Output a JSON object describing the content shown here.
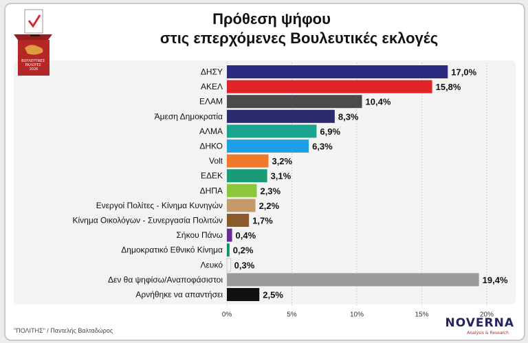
{
  "header": {
    "title_line1": "Πρόθεση ψήφου",
    "title_line2": "στις επερχόμενες Βουλευτικές εκλογές",
    "ballot_box_text": "ΒΟΥΛΕΥΤΙΚΕΣ ΕΚΛΟΓΕΣ 2026"
  },
  "footer": {
    "source": "\"ΠΟΛΙΤΗΣ\" / Παντελής Βαλταδώρος",
    "brand": "NOVERNA",
    "brand_sub": "Analysis & Research"
  },
  "chart_data": {
    "type": "bar",
    "orientation": "horizontal",
    "title": "Πρόθεση ψήφου στις επερχόμενες Βουλευτικές εκλογές",
    "xlim": [
      0,
      20
    ],
    "xticks": [
      "0%",
      "5%",
      "10%",
      "15%",
      "20%"
    ],
    "grid": true,
    "bars": [
      {
        "label": "ΔΗΣΥ",
        "value": 17.0,
        "value_label": "17,0%",
        "color": "#2a2b7f"
      },
      {
        "label": "ΑΚΕΛ",
        "value": 15.8,
        "value_label": "15,8%",
        "color": "#e3232c"
      },
      {
        "label": "ΕΛΑΜ",
        "value": 10.4,
        "value_label": "10,4%",
        "color": "#4b4b4e"
      },
      {
        "label": "Άμεση Δημοκρατία",
        "value": 8.3,
        "value_label": "8,3%",
        "color": "#2c2a6c"
      },
      {
        "label": "ΑΛΜΑ",
        "value": 6.9,
        "value_label": "6,9%",
        "color": "#1aa38f"
      },
      {
        "label": "ΔΗΚΟ",
        "value": 6.3,
        "value_label": "6,3%",
        "color": "#1ea0e6"
      },
      {
        "label": "Volt",
        "value": 3.2,
        "value_label": "3,2%",
        "color": "#f0792b"
      },
      {
        "label": "ΕΔΕΚ",
        "value": 3.1,
        "value_label": "3,1%",
        "color": "#1b9a78"
      },
      {
        "label": "ΔΗΠΑ",
        "value": 2.3,
        "value_label": "2,3%",
        "color": "#8cc63f"
      },
      {
        "label": "Ενεργοί Πολίτες - Κίνημα Κυνηγών",
        "value": 2.2,
        "value_label": "2,2%",
        "color": "#c49a6c"
      },
      {
        "label": "Κίνημα Οικολόγων - Συνεργασία Πολιτών",
        "value": 1.7,
        "value_label": "1,7%",
        "color": "#8b5a2b"
      },
      {
        "label": "Σήκου Πάνω",
        "value": 0.4,
        "value_label": "0,4%",
        "color": "#6a2c91"
      },
      {
        "label": "Δημοκρατικό Εθνικό Κίνημα",
        "value": 0.2,
        "value_label": "0,2%",
        "color": "#0e8f6a"
      },
      {
        "label": "Λευκό",
        "value": 0.3,
        "value_label": "0,3%",
        "color": "#f2f2f2"
      },
      {
        "label": "Δεν θα ψηφίσω/Αναποφάσιστοι",
        "value": 19.4,
        "value_label": "19,4%",
        "color": "#9a9a9d"
      },
      {
        "label": "Αρνήθηκε να απαντήσει",
        "value": 2.5,
        "value_label": "2,5%",
        "color": "#111111"
      }
    ]
  }
}
